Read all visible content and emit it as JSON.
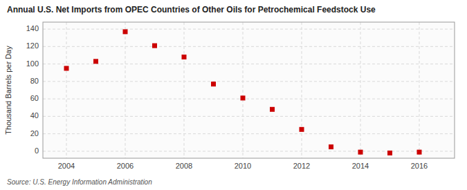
{
  "chart_data": {
    "type": "scatter",
    "title": "Annual U.S. Net Imports from OPEC Countries of Other Oils for Petrochemical Feedstock Use",
    "y_label": "Thousand Barrels per Day",
    "source": "Source: U.S. Energy Information Administration",
    "x": [
      2004,
      2005,
      2006,
      2007,
      2008,
      2009,
      2010,
      2011,
      2012,
      2013,
      2014,
      2015,
      2016
    ],
    "values": [
      95,
      103,
      137,
      121,
      108,
      77,
      61,
      48,
      25,
      5,
      -1,
      -2,
      -1
    ],
    "color": "#cc0000",
    "marker": "square",
    "xlim": [
      2003.2,
      2017.2
    ],
    "ylim": [
      -8,
      148
    ],
    "xticks": [
      2004,
      2006,
      2008,
      2010,
      2012,
      2014,
      2016
    ],
    "yticks": [
      0,
      20,
      40,
      60,
      80,
      100,
      120,
      140
    ],
    "grid": true
  }
}
